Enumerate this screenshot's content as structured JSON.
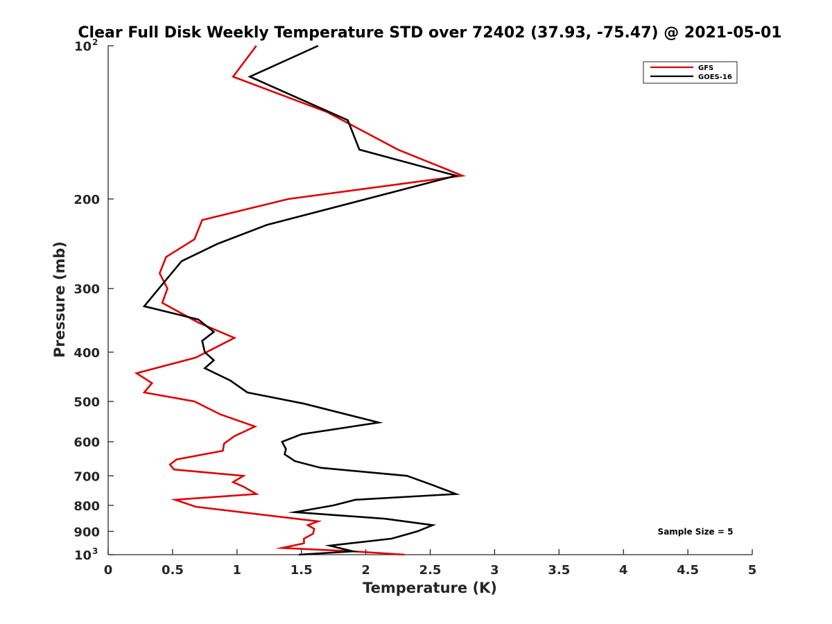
{
  "chart_data": {
    "type": "line",
    "title": "Clear Full Disk Weekly Temperature STD over 72402 (37.93, -75.47) @ 2021-05-01",
    "xlabel": "Temperature (K)",
    "ylabel": "Pressure (mb)",
    "xlim": [
      0,
      5
    ],
    "ylim": [
      100,
      1000
    ],
    "yscale": "log",
    "y_reversed": true,
    "x_ticks": [
      "0",
      "0.5",
      "1",
      "1.5",
      "2",
      "2.5",
      "3",
      "3.5",
      "4",
      "4.5",
      "5"
    ],
    "x_tick_values": [
      0,
      0.5,
      1,
      1.5,
      2,
      2.5,
      3,
      3.5,
      4,
      4.5,
      5
    ],
    "y_ticks": [
      {
        "value": 100,
        "label": "10",
        "exp": "2"
      },
      {
        "value": 200,
        "label": "200"
      },
      {
        "value": 300,
        "label": "300"
      },
      {
        "value": 400,
        "label": "400"
      },
      {
        "value": 500,
        "label": "500"
      },
      {
        "value": 600,
        "label": "600"
      },
      {
        "value": 700,
        "label": "700"
      },
      {
        "value": 800,
        "label": "800"
      },
      {
        "value": 900,
        "label": "900"
      },
      {
        "value": 1000,
        "label": "10",
        "exp": "3"
      }
    ],
    "legend": {
      "position": "top-right",
      "entries": [
        "GFS",
        "GOES-16"
      ]
    },
    "annotation": "Sample Size = 5",
    "series": [
      {
        "name": "GFS",
        "color": "#e00000",
        "points": [
          [
            1.15,
            100
          ],
          [
            0.97,
            115
          ],
          [
            1.7,
            135
          ],
          [
            2.25,
            160
          ],
          [
            2.75,
            180
          ],
          [
            1.4,
            200
          ],
          [
            0.73,
            220
          ],
          [
            0.67,
            240
          ],
          [
            0.45,
            260
          ],
          [
            0.4,
            280
          ],
          [
            0.46,
            300
          ],
          [
            0.42,
            320
          ],
          [
            0.7,
            350
          ],
          [
            0.98,
            375
          ],
          [
            0.68,
            410
          ],
          [
            0.22,
            440
          ],
          [
            0.34,
            460
          ],
          [
            0.28,
            480
          ],
          [
            0.67,
            500
          ],
          [
            0.87,
            530
          ],
          [
            1.14,
            560
          ],
          [
            0.98,
            585
          ],
          [
            0.9,
            605
          ],
          [
            0.89,
            625
          ],
          [
            0.53,
            650
          ],
          [
            0.48,
            665
          ],
          [
            0.51,
            680
          ],
          [
            1.05,
            700
          ],
          [
            0.97,
            720
          ],
          [
            1.05,
            735
          ],
          [
            1.15,
            760
          ],
          [
            0.52,
            780
          ],
          [
            0.68,
            805
          ],
          [
            1.63,
            860
          ],
          [
            1.55,
            875
          ],
          [
            1.6,
            890
          ],
          [
            1.59,
            910
          ],
          [
            1.52,
            930
          ],
          [
            1.52,
            950
          ],
          [
            1.35,
            970
          ],
          [
            1.9,
            985
          ],
          [
            2.3,
            1000
          ]
        ]
      },
      {
        "name": "GOES-16",
        "color": "#000000",
        "points": [
          [
            1.63,
            100
          ],
          [
            1.1,
            115
          ],
          [
            1.86,
            140
          ],
          [
            1.95,
            160
          ],
          [
            2.7,
            180
          ],
          [
            1.23,
            225
          ],
          [
            0.85,
            245
          ],
          [
            0.57,
            265
          ],
          [
            0.28,
            325
          ],
          [
            0.7,
            345
          ],
          [
            0.82,
            365
          ],
          [
            0.73,
            380
          ],
          [
            0.75,
            400
          ],
          [
            0.82,
            415
          ],
          [
            0.75,
            430
          ],
          [
            0.95,
            455
          ],
          [
            1.08,
            480
          ],
          [
            1.52,
            505
          ],
          [
            2.1,
            550
          ],
          [
            1.5,
            580
          ],
          [
            1.35,
            600
          ],
          [
            1.38,
            620
          ],
          [
            1.37,
            635
          ],
          [
            1.45,
            655
          ],
          [
            1.65,
            675
          ],
          [
            2.32,
            700
          ],
          [
            2.52,
            730
          ],
          [
            2.7,
            760
          ],
          [
            1.92,
            780
          ],
          [
            1.75,
            800
          ],
          [
            1.45,
            825
          ],
          [
            2.15,
            850
          ],
          [
            2.52,
            875
          ],
          [
            2.4,
            900
          ],
          [
            2.2,
            930
          ],
          [
            1.72,
            960
          ],
          [
            1.9,
            985
          ],
          [
            1.48,
            1000
          ]
        ]
      }
    ]
  }
}
